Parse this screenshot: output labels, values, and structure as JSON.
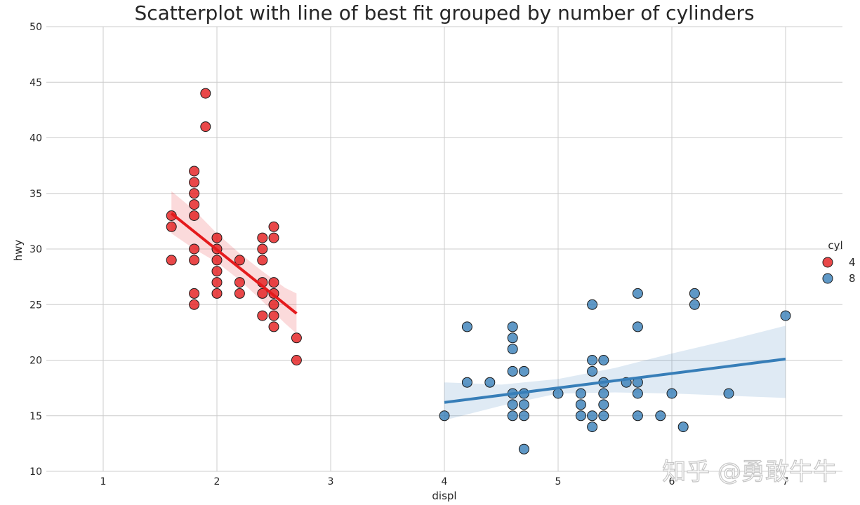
{
  "chart_data": {
    "type": "scatter",
    "title": "Scatterplot with line of best fit grouped by number of cylinders",
    "xlabel": "displ",
    "ylabel": "hwy",
    "xlim": [
      0.5,
      7.5
    ],
    "ylim": [
      10,
      50
    ],
    "xticks": [
      "1",
      "2",
      "3",
      "4",
      "5",
      "6",
      "7"
    ],
    "yticks": [
      "10",
      "15",
      "20",
      "25",
      "30",
      "35",
      "40",
      "45",
      "50"
    ],
    "grid": true,
    "legend": {
      "title": "cyl",
      "position": "right"
    },
    "series": [
      {
        "name": "4",
        "color": "#e41a1c",
        "points": [
          [
            1.6,
            33
          ],
          [
            1.6,
            32
          ],
          [
            1.6,
            29
          ],
          [
            1.8,
            37
          ],
          [
            1.8,
            36
          ],
          [
            1.8,
            35
          ],
          [
            1.8,
            34
          ],
          [
            1.8,
            33
          ],
          [
            1.8,
            30
          ],
          [
            1.8,
            29
          ],
          [
            1.8,
            26
          ],
          [
            1.8,
            25
          ],
          [
            1.9,
            44
          ],
          [
            1.9,
            41
          ],
          [
            2.0,
            31
          ],
          [
            2.0,
            30
          ],
          [
            2.0,
            29
          ],
          [
            2.0,
            28
          ],
          [
            2.0,
            27
          ],
          [
            2.0,
            26
          ],
          [
            2.2,
            29
          ],
          [
            2.2,
            27
          ],
          [
            2.2,
            26
          ],
          [
            2.4,
            31
          ],
          [
            2.4,
            30
          ],
          [
            2.4,
            29
          ],
          [
            2.4,
            27
          ],
          [
            2.4,
            26
          ],
          [
            2.4,
            24
          ],
          [
            2.5,
            32
          ],
          [
            2.5,
            31
          ],
          [
            2.5,
            27
          ],
          [
            2.5,
            26
          ],
          [
            2.5,
            25
          ],
          [
            2.5,
            24
          ],
          [
            2.5,
            23
          ],
          [
            2.7,
            22
          ],
          [
            2.7,
            20
          ]
        ],
        "fit": {
          "x_start": 1.6,
          "y_start": 33.2,
          "x_end": 2.7,
          "y_end": 24.2
        },
        "ci": {
          "x": [
            1.6,
            1.8,
            2.0,
            2.2,
            2.4,
            2.6,
            2.7
          ],
          "upper": [
            35.2,
            33.5,
            31.4,
            29.6,
            28.0,
            26.5,
            26.0
          ],
          "lower": [
            31.4,
            30.0,
            28.8,
            27.2,
            25.3,
            23.3,
            22.4
          ]
        }
      },
      {
        "name": "8",
        "color": "#377eb8",
        "points": [
          [
            4.0,
            15
          ],
          [
            4.2,
            23
          ],
          [
            4.2,
            18
          ],
          [
            4.4,
            18
          ],
          [
            4.6,
            23
          ],
          [
            4.6,
            22
          ],
          [
            4.6,
            21
          ],
          [
            4.6,
            19
          ],
          [
            4.6,
            17
          ],
          [
            4.6,
            16
          ],
          [
            4.6,
            15
          ],
          [
            4.7,
            19
          ],
          [
            4.7,
            17
          ],
          [
            4.7,
            16
          ],
          [
            4.7,
            15
          ],
          [
            4.7,
            12
          ],
          [
            5.0,
            17
          ],
          [
            5.2,
            17
          ],
          [
            5.2,
            16
          ],
          [
            5.2,
            15
          ],
          [
            5.3,
            25
          ],
          [
            5.3,
            20
          ],
          [
            5.3,
            19
          ],
          [
            5.3,
            15
          ],
          [
            5.3,
            14
          ],
          [
            5.4,
            20
          ],
          [
            5.4,
            18
          ],
          [
            5.4,
            17
          ],
          [
            5.4,
            16
          ],
          [
            5.4,
            15
          ],
          [
            5.6,
            18
          ],
          [
            5.7,
            26
          ],
          [
            5.7,
            23
          ],
          [
            5.7,
            18
          ],
          [
            5.7,
            17
          ],
          [
            5.7,
            15
          ],
          [
            5.9,
            15
          ],
          [
            6.0,
            17
          ],
          [
            6.1,
            14
          ],
          [
            6.2,
            26
          ],
          [
            6.2,
            25
          ],
          [
            6.5,
            17
          ],
          [
            7.0,
            24
          ]
        ],
        "fit": {
          "x_start": 4.0,
          "y_start": 16.2,
          "x_end": 7.0,
          "y_end": 20.1
        },
        "ci": {
          "x": [
            4.0,
            4.5,
            5.0,
            5.5,
            6.0,
            6.5,
            7.0
          ],
          "upper": [
            18.0,
            17.8,
            18.3,
            19.3,
            20.6,
            21.8,
            23.1
          ],
          "lower": [
            14.6,
            15.9,
            17.0,
            17.1,
            17.0,
            16.8,
            16.6
          ]
        }
      }
    ]
  },
  "watermark": "知乎 @勇敢牛牛"
}
